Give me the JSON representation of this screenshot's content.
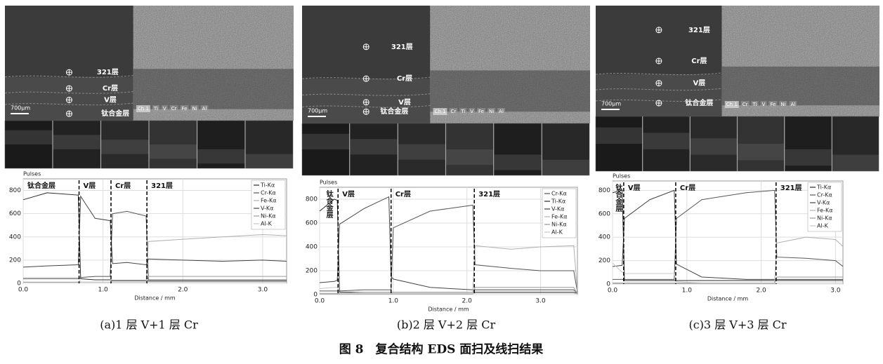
{
  "chart_data": [
    {
      "type": "line",
      "ylabel": "Pulses",
      "xlabel": "Distance / mm",
      "xlim": [
        0,
        3.3
      ],
      "ylim": [
        0,
        900
      ],
      "xticks": [
        {
          "value": 0,
          "label": "0.0"
        },
        {
          "value": 1,
          "label": "1.0"
        },
        {
          "value": 2,
          "label": "2.0"
        },
        {
          "value": 3,
          "label": "3.0"
        }
      ],
      "yticks": [
        0,
        200,
        400,
        600,
        800
      ],
      "grid": true,
      "legend": "upper right",
      "regions": [
        "钛合金层",
        "V层",
        "Cr层",
        "321层"
      ],
      "boundaries": [
        0.7,
        1.1,
        1.55
      ],
      "x": [
        0,
        0.3,
        0.69,
        0.72,
        0.9,
        1.09,
        1.12,
        1.3,
        1.54,
        1.57,
        2.0,
        2.5,
        3.0,
        3.3
      ],
      "series": [
        {
          "name": "Ti-Kα",
          "color": "#2a2a2a",
          "values": [
            720,
            780,
            760,
            40,
            30,
            30,
            25,
            25,
            25,
            20,
            20,
            20,
            20,
            20
          ]
        },
        {
          "name": "Cr-Kα",
          "color": "#555555",
          "values": [
            40,
            40,
            40,
            50,
            60,
            60,
            600,
            620,
            580,
            30,
            30,
            30,
            30,
            30
          ]
        },
        {
          "name": "Fe-Kα",
          "color": "#b0b0b0",
          "values": [
            10,
            10,
            10,
            10,
            10,
            10,
            20,
            20,
            20,
            360,
            380,
            400,
            420,
            410
          ]
        },
        {
          "name": "V-Kα",
          "color": "#444444",
          "values": [
            140,
            150,
            160,
            750,
            560,
            540,
            170,
            180,
            160,
            210,
            200,
            190,
            200,
            190
          ]
        },
        {
          "name": "Ni-Kα",
          "color": "#999999",
          "values": [
            10,
            10,
            10,
            10,
            10,
            10,
            10,
            10,
            10,
            60,
            60,
            60,
            60,
            60
          ]
        },
        {
          "name": "Al-K",
          "color": "#c8c8c8",
          "values": [
            50,
            50,
            50,
            10,
            10,
            10,
            10,
            10,
            10,
            10,
            10,
            10,
            10,
            10
          ]
        }
      ]
    },
    {
      "type": "line",
      "ylabel": "Pulses",
      "xlabel": "Distance / mm",
      "xlim": [
        0,
        3.5
      ],
      "ylim": [
        0,
        900
      ],
      "xticks": [
        {
          "value": 0,
          "label": "0.0"
        },
        {
          "value": 1,
          "label": "1.0"
        },
        {
          "value": 2,
          "label": "2.0"
        },
        {
          "value": 3,
          "label": "3.0"
        }
      ],
      "yticks": [
        0,
        200,
        400,
        600,
        800
      ],
      "grid": true,
      "legend": "upper right",
      "regions": [
        "钛合金层",
        "V层",
        "Cr层",
        "321层"
      ],
      "boundaries": [
        0.25,
        0.97,
        2.1
      ],
      "x": [
        0,
        0.2,
        0.24,
        0.27,
        0.6,
        0.94,
        0.97,
        1.0,
        1.5,
        2.08,
        2.11,
        2.6,
        3.0,
        3.45,
        3.5
      ],
      "series": [
        {
          "name": "Cr-Kα",
          "color": "#555555",
          "values": [
            30,
            30,
            30,
            30,
            40,
            40,
            40,
            560,
            700,
            750,
            250,
            220,
            200,
            200,
            20
          ]
        },
        {
          "name": "Ti-Kα",
          "color": "#2a2a2a",
          "values": [
            700,
            800,
            790,
            20,
            20,
            20,
            20,
            20,
            20,
            20,
            20,
            20,
            20,
            20,
            10
          ]
        },
        {
          "name": "V-Kα",
          "color": "#444444",
          "values": [
            100,
            110,
            120,
            590,
            720,
            820,
            150,
            130,
            60,
            40,
            40,
            40,
            40,
            40,
            10
          ]
        },
        {
          "name": "Fe-Kα",
          "color": "#b0b0b0",
          "values": [
            10,
            10,
            10,
            10,
            20,
            20,
            20,
            20,
            20,
            20,
            410,
            380,
            400,
            410,
            30
          ]
        },
        {
          "name": "Ni-Kα",
          "color": "#999999",
          "values": [
            5,
            5,
            5,
            5,
            5,
            5,
            5,
            5,
            5,
            5,
            60,
            60,
            60,
            60,
            5
          ]
        },
        {
          "name": "Al-K",
          "color": "#c8c8c8",
          "values": [
            50,
            60,
            60,
            10,
            10,
            10,
            10,
            10,
            10,
            10,
            10,
            10,
            10,
            10,
            5
          ]
        }
      ]
    },
    {
      "type": "line",
      "ylabel": "Pulses",
      "xlabel": "Distance / mm",
      "xlim": [
        0,
        3.1
      ],
      "ylim": [
        0,
        880
      ],
      "xticks": [
        {
          "value": 0,
          "label": "0.0"
        },
        {
          "value": 1,
          "label": "1.0"
        },
        {
          "value": 2,
          "label": "2.0"
        },
        {
          "value": 3,
          "label": "3.0"
        }
      ],
      "yticks": [
        0,
        200,
        400,
        600,
        800
      ],
      "grid": true,
      "legend": "upper right",
      "regions": [
        "钛合金层",
        "V层",
        "Cr层",
        "321层"
      ],
      "boundaries": [
        0.15,
        0.85,
        2.2
      ],
      "x": [
        0,
        0.13,
        0.16,
        0.5,
        0.83,
        0.86,
        1.2,
        1.8,
        2.18,
        2.21,
        2.6,
        3.0,
        3.1
      ],
      "series": [
        {
          "name": "Ti-Kα",
          "color": "#2a2a2a",
          "values": [
            780,
            800,
            30,
            30,
            30,
            30,
            30,
            30,
            30,
            30,
            30,
            30,
            30
          ]
        },
        {
          "name": "Cr-Kα",
          "color": "#555555",
          "values": [
            40,
            40,
            40,
            40,
            40,
            560,
            720,
            780,
            800,
            230,
            220,
            200,
            150
          ]
        },
        {
          "name": "V-Kα",
          "color": "#444444",
          "values": [
            150,
            160,
            560,
            720,
            800,
            170,
            60,
            40,
            40,
            40,
            40,
            40,
            40
          ]
        },
        {
          "name": "Fe-Kα",
          "color": "#b0b0b0",
          "values": [
            10,
            10,
            10,
            10,
            10,
            10,
            10,
            10,
            10,
            350,
            400,
            380,
            320
          ]
        },
        {
          "name": "Ni-Kα",
          "color": "#999999",
          "values": [
            5,
            5,
            5,
            5,
            5,
            5,
            5,
            5,
            5,
            60,
            60,
            60,
            60
          ]
        },
        {
          "name": "Al-K",
          "color": "#c8c8c8",
          "values": [
            180,
            100,
            90,
            90,
            90,
            20,
            10,
            10,
            10,
            10,
            10,
            10,
            10
          ]
        }
      ]
    }
  ],
  "images": [
    {
      "labels": [
        "321层",
        "Cr层",
        "V层",
        "钛合金层"
      ],
      "scale": "700μm",
      "channels": [
        "Ch 1",
        "Ti",
        "V",
        "Cr",
        "Fe",
        "Ni",
        "Al"
      ]
    },
    {
      "labels": [
        "321层",
        "Cr层",
        "V层",
        "钛合金层"
      ],
      "scale": "700μm",
      "channels": [
        "Ch 1",
        "Cr",
        "Ti",
        "V",
        "Fe",
        "Ni",
        "Al"
      ]
    },
    {
      "labels": [
        "321层",
        "Cr层",
        "V层",
        "钛合金层"
      ],
      "scale": "700μm",
      "channels": [
        "Ch 1",
        "Cr",
        "Ti",
        "V",
        "Fe",
        "Ni",
        "Al"
      ]
    }
  ],
  "captions": [
    "(a)1 层 V+1 层 Cr",
    "(b)2 层 V+2 层 Cr",
    "(c)3 层 V+3 层 Cr"
  ],
  "figure_caption": "图 8　复合结构 EDS 面扫及线扫结果"
}
